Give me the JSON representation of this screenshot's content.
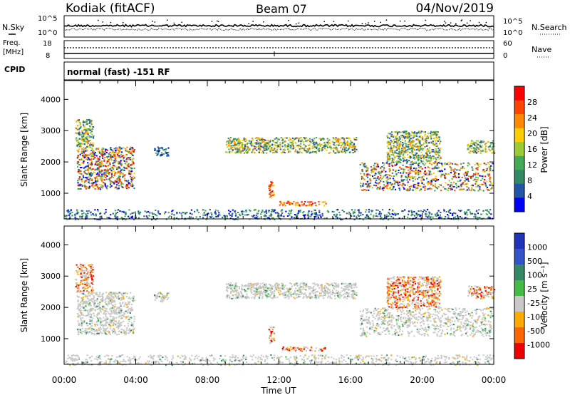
{
  "header": {
    "station": "Kodiak (fitACF)",
    "beam": "Beam 07",
    "date": "04/Nov/2019"
  },
  "noise_panel": {
    "left_label": "N.Sky",
    "right_label": "N.Search",
    "left_ticks": [
      "10^5",
      "10^0"
    ],
    "right_ticks": [
      "10^5",
      "10^0"
    ]
  },
  "freq_panel": {
    "left_label_1": "Freq.",
    "left_label_2": "[MHz]",
    "right_label": "Nave",
    "left_ticks": [
      "18",
      "8"
    ],
    "right_ticks": [
      "60",
      "0"
    ]
  },
  "cpid_panel": {
    "label": "CPID",
    "text": "normal (fast) -151 RF"
  },
  "power_panel": {
    "ylabel": "Slant Range [km]",
    "colorbar_label": "Power [dB]",
    "colorbar_ticks": [
      "28",
      "24",
      "20",
      "16",
      "12",
      "8",
      "4"
    ],
    "colors": [
      "#ff0000",
      "#ff4400",
      "#ff8800",
      "#ffcc00",
      "#99cc33",
      "#44aa55",
      "#338866",
      "#2255aa",
      "#0000ff"
    ]
  },
  "velocity_panel": {
    "ylabel": "Slant Range [km]",
    "colorbar_label": "Velocity [m s⁻¹]",
    "colorbar_ticks": [
      "1000",
      "500",
      "100",
      "25",
      "-25",
      "-100",
      "-500",
      "-1000"
    ],
    "colors": [
      "#2233bb",
      "#3355cc",
      "#338866",
      "#44bb44",
      "#c8c8c8",
      "#ffaa00",
      "#ff6600",
      "#ee0000"
    ]
  },
  "chart_data": {
    "type": "heatmap",
    "xlabel": "Time UT",
    "x_ticks": [
      "00:00",
      "04:00",
      "08:00",
      "12:00",
      "16:00",
      "20:00",
      "00:00"
    ],
    "xlim_hours": [
      0,
      24
    ],
    "ylim_km": [
      180,
      4600
    ],
    "y_ticks": [
      1000,
      2000,
      3000,
      4000
    ],
    "power_scale_db": [
      0,
      30
    ],
    "velocity_scale_ms": [
      -1000,
      1000
    ],
    "scatter_regions": [
      {
        "t": [
          0.7,
          3.9
        ],
        "r": [
          1150,
          2500
        ],
        "power": "mixed",
        "velocity": "low"
      },
      {
        "t": [
          0.6,
          1.6
        ],
        "r": [
          2500,
          3400
        ],
        "power": "mid",
        "velocity": "negative"
      },
      {
        "t": [
          5.0,
          5.8
        ],
        "r": [
          2200,
          2500
        ],
        "power": "low",
        "velocity": "low"
      },
      {
        "t": [
          9.0,
          16.3
        ],
        "r": [
          2300,
          2800
        ],
        "power": "mid",
        "velocity": "low"
      },
      {
        "t": [
          11.4,
          11.7
        ],
        "r": [
          850,
          1400
        ],
        "power": "high",
        "velocity": "negative"
      },
      {
        "t": [
          12.0,
          14.6
        ],
        "r": [
          620,
          760
        ],
        "power": "high",
        "velocity": "negative"
      },
      {
        "t": [
          16.5,
          23.9
        ],
        "r": [
          1100,
          2000
        ],
        "power": "mixed",
        "velocity": "low"
      },
      {
        "t": [
          18.0,
          21.0
        ],
        "r": [
          2000,
          3000
        ],
        "power": "mid",
        "velocity": "negative"
      },
      {
        "t": [
          22.5,
          24.0
        ],
        "r": [
          2300,
          2700
        ],
        "power": "mid",
        "velocity": "negative"
      },
      {
        "t": [
          0.0,
          24.0
        ],
        "r": [
          180,
          500
        ],
        "power": "low",
        "velocity": "low"
      }
    ]
  }
}
